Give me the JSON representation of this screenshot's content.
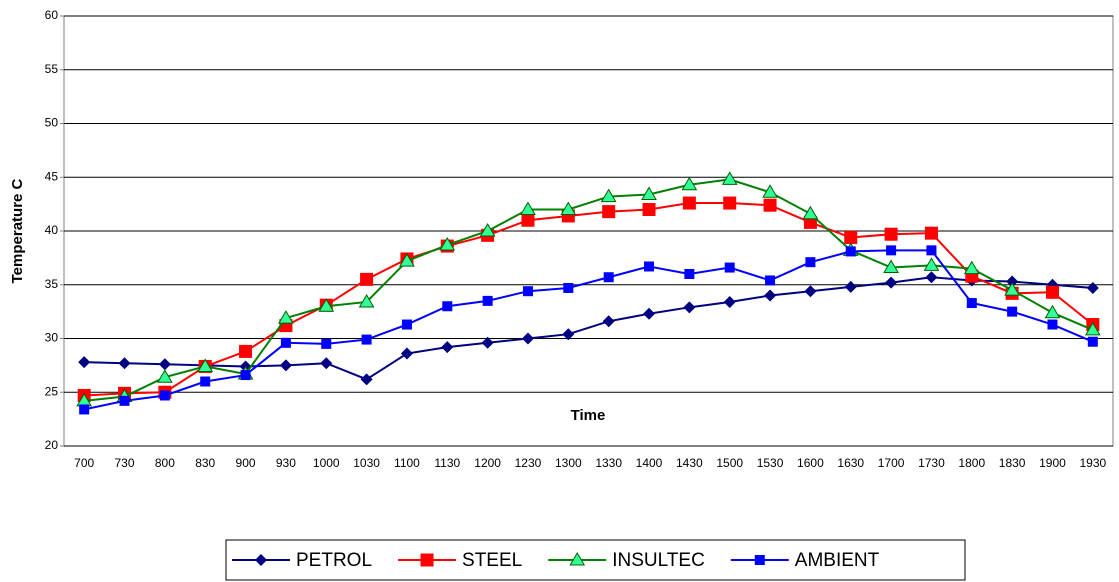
{
  "chart_data": {
    "type": "line",
    "xlabel": "Time",
    "ylabel": "Temperature C",
    "categories": [
      "700",
      "730",
      "800",
      "830",
      "900",
      "930",
      "1000",
      "1030",
      "1100",
      "1130",
      "1200",
      "1230",
      "1300",
      "1330",
      "1400",
      "1430",
      "1500",
      "1530",
      "1600",
      "1630",
      "1700",
      "1730",
      "1800",
      "1830",
      "1900",
      "1930"
    ],
    "ylim": [
      20,
      60
    ],
    "yticks": [
      20,
      25,
      30,
      35,
      40,
      45,
      50,
      55,
      60
    ],
    "grid": true,
    "legend": "bottom",
    "series": [
      {
        "name": "PETROL",
        "color": "#000080",
        "marker": "diamond",
        "marker_color": "#000080",
        "values": [
          27.8,
          27.7,
          27.6,
          27.5,
          27.4,
          27.5,
          27.7,
          26.2,
          28.6,
          29.2,
          29.6,
          30.0,
          30.4,
          31.6,
          32.3,
          32.9,
          33.4,
          34.0,
          34.4,
          34.8,
          35.2,
          35.7,
          35.4,
          35.3,
          35.0,
          34.7
        ]
      },
      {
        "name": "STEEL",
        "color": "#ff0000",
        "marker": "square",
        "marker_color": "#ff0000",
        "values": [
          24.7,
          24.9,
          25.0,
          27.4,
          28.8,
          31.2,
          33.1,
          35.5,
          37.4,
          38.6,
          39.6,
          41.0,
          41.4,
          41.8,
          42.0,
          42.6,
          42.6,
          42.4,
          40.8,
          39.4,
          39.7,
          39.8,
          35.8,
          34.2,
          34.3,
          31.3
        ]
      },
      {
        "name": "INSULTEC",
        "color": "#008000",
        "marker": "triangle",
        "marker_color": "#33ff99",
        "values": [
          24.2,
          24.6,
          26.4,
          27.4,
          26.7,
          31.9,
          33.0,
          33.4,
          37.2,
          38.7,
          40.0,
          42.0,
          42.0,
          43.2,
          43.4,
          44.3,
          44.8,
          43.6,
          41.6,
          38.2,
          36.6,
          36.8,
          36.5,
          34.5,
          32.4,
          30.8
        ]
      },
      {
        "name": "AMBIENT",
        "color": "#0000ff",
        "marker": "smallsquare",
        "marker_color": "#0000ff",
        "values": [
          23.4,
          24.2,
          24.7,
          26.0,
          26.6,
          29.6,
          29.5,
          29.9,
          31.3,
          33.0,
          33.5,
          34.4,
          34.7,
          35.7,
          36.7,
          36.0,
          36.6,
          35.4,
          37.1,
          38.1,
          38.2,
          38.2,
          33.3,
          32.5,
          31.3,
          29.7
        ]
      }
    ]
  }
}
